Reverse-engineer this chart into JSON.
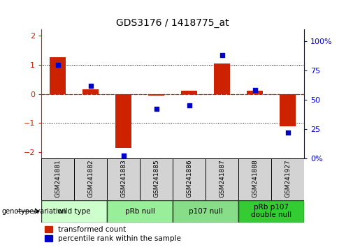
{
  "title": "GDS3176 / 1418775_at",
  "samples": [
    "GSM241881",
    "GSM241882",
    "GSM241883",
    "GSM241885",
    "GSM241886",
    "GSM241887",
    "GSM241888",
    "GSM241927"
  ],
  "red_values": [
    1.25,
    0.15,
    -1.85,
    -0.05,
    0.1,
    1.05,
    0.1,
    -1.1
  ],
  "blue_values_pct": [
    80,
    62,
    2,
    42,
    45,
    88,
    58,
    22
  ],
  "groups": [
    {
      "label": "wild type",
      "start": 0,
      "end": 2,
      "color": "#ccffcc"
    },
    {
      "label": "pRb null",
      "start": 2,
      "end": 4,
      "color": "#99ee99"
    },
    {
      "label": "p107 null",
      "start": 4,
      "end": 6,
      "color": "#88dd88"
    },
    {
      "label": "pRb p107\ndouble null",
      "start": 6,
      "end": 8,
      "color": "#33cc33"
    }
  ],
  "ylim": [
    -2.2,
    2.2
  ],
  "y2lim": [
    0,
    110
  ],
  "y2ticks": [
    0,
    25,
    50,
    75,
    100
  ],
  "y2ticklabels": [
    "0%",
    "25",
    "50",
    "75",
    "100%"
  ],
  "yticks": [
    -2,
    -1,
    0,
    1,
    2
  ],
  "red_color": "#cc2200",
  "blue_color": "#0000cc",
  "bar_width": 0.5,
  "sample_box_color": "#d3d3d3",
  "group_border_color": "#333333"
}
